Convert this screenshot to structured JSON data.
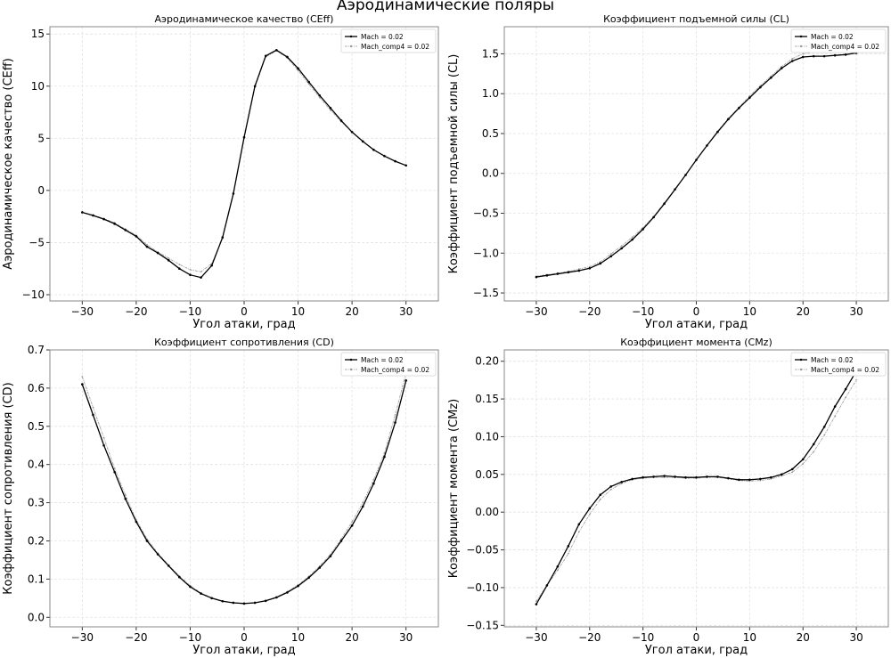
{
  "suptitle": "Аэродинамические поляры",
  "chart_data": [
    {
      "type": "line",
      "title": "Аэродинамическое качество (CEff)",
      "xlabel": "Угол атаки, град",
      "ylabel": "Аэродинамическое качество (CEff)",
      "xlim": [
        -36,
        36
      ],
      "ylim": [
        -10.6,
        15.7
      ],
      "xticks": [
        -30,
        -20,
        -10,
        0,
        10,
        20,
        30
      ],
      "yticks": [
        -10,
        -5,
        0,
        5,
        10,
        15
      ],
      "grid": true,
      "legend": "top-right",
      "x": [
        -30,
        -28,
        -26,
        -24,
        -22,
        -20,
        -18,
        -16,
        -14,
        -12,
        -10,
        -8,
        -6,
        -4,
        -2,
        0,
        2,
        4,
        6,
        8,
        10,
        12,
        14,
        16,
        18,
        20,
        22,
        24,
        26,
        28,
        30
      ],
      "series": [
        {
          "name": "Mach = 0.02",
          "color": "#000000",
          "values": [
            -2.1,
            -2.4,
            -2.75,
            -3.2,
            -3.8,
            -4.4,
            -5.4,
            -6.0,
            -6.7,
            -7.5,
            -8.1,
            -8.35,
            -7.2,
            -4.5,
            -0.3,
            5.1,
            10.0,
            12.9,
            13.45,
            12.8,
            11.7,
            10.4,
            9.1,
            7.9,
            6.7,
            5.6,
            4.7,
            3.9,
            3.3,
            2.8,
            2.4
          ]
        },
        {
          "name": "Mach_comp4 = 0.02",
          "color": "#999999",
          "values": [
            -2.1,
            -2.35,
            -2.7,
            -3.1,
            -3.7,
            -4.3,
            -5.2,
            -5.9,
            -6.5,
            -7.1,
            -7.6,
            -7.8,
            -7.0,
            -4.6,
            -0.4,
            5.0,
            9.9,
            12.8,
            13.4,
            12.7,
            11.5,
            10.2,
            8.9,
            7.7,
            6.6,
            5.6,
            4.7,
            3.9,
            3.3,
            2.8,
            2.4
          ]
        }
      ]
    },
    {
      "type": "line",
      "title": "Коэффициент подъемной силы (CL)",
      "xlabel": "Угол атаки, град",
      "ylabel": "Коэффициент подъемной силы (CL)",
      "xlim": [
        -36,
        36
      ],
      "ylim": [
        -1.6,
        1.84
      ],
      "xticks": [
        -30,
        -20,
        -10,
        0,
        10,
        20,
        30
      ],
      "yticks": [
        -1.5,
        -1.0,
        -0.5,
        0.0,
        0.5,
        1.0,
        1.5
      ],
      "grid": true,
      "legend": "top-right",
      "x": [
        -30,
        -28,
        -26,
        -24,
        -22,
        -20,
        -18,
        -16,
        -14,
        -12,
        -10,
        -8,
        -6,
        -4,
        -2,
        0,
        2,
        4,
        6,
        8,
        10,
        12,
        14,
        16,
        18,
        20,
        22,
        24,
        26,
        28,
        30
      ],
      "series": [
        {
          "name": "Mach = 0.02",
          "color": "#000000",
          "values": [
            -1.3,
            -1.28,
            -1.26,
            -1.24,
            -1.22,
            -1.19,
            -1.13,
            -1.04,
            -0.94,
            -0.83,
            -0.7,
            -0.55,
            -0.38,
            -0.2,
            -0.02,
            0.17,
            0.35,
            0.52,
            0.68,
            0.82,
            0.95,
            1.08,
            1.2,
            1.32,
            1.41,
            1.46,
            1.47,
            1.47,
            1.48,
            1.49,
            1.51
          ]
        },
        {
          "name": "Mach_comp4 = 0.02",
          "color": "#999999",
          "values": [
            -1.29,
            -1.27,
            -1.25,
            -1.23,
            -1.2,
            -1.17,
            -1.11,
            -1.01,
            -0.91,
            -0.8,
            -0.68,
            -0.54,
            -0.37,
            -0.2,
            -0.02,
            0.17,
            0.35,
            0.53,
            0.69,
            0.83,
            0.97,
            1.1,
            1.22,
            1.34,
            1.44,
            1.5,
            1.52,
            1.53,
            1.54,
            1.55,
            1.56
          ]
        }
      ]
    },
    {
      "type": "line",
      "title": "Коэффициент сопротивления (CD)",
      "xlabel": "Угол атаки, град",
      "ylabel": "Коэффициент сопротивления (CD)",
      "xlim": [
        -36,
        36
      ],
      "ylim": [
        -0.025,
        0.7
      ],
      "xticks": [
        -30,
        -20,
        -10,
        0,
        10,
        20,
        30
      ],
      "yticks": [
        0.0,
        0.1,
        0.2,
        0.3,
        0.4,
        0.5,
        0.6,
        0.7
      ],
      "grid": true,
      "legend": "top-right",
      "x": [
        -30,
        -28,
        -26,
        -24,
        -22,
        -20,
        -18,
        -16,
        -14,
        -12,
        -10,
        -8,
        -6,
        -4,
        -2,
        0,
        2,
        4,
        6,
        8,
        10,
        12,
        14,
        16,
        18,
        20,
        22,
        24,
        26,
        28,
        30
      ],
      "series": [
        {
          "name": "Mach = 0.02",
          "color": "#000000",
          "values": [
            0.61,
            0.53,
            0.45,
            0.38,
            0.31,
            0.25,
            0.2,
            0.165,
            0.135,
            0.105,
            0.08,
            0.062,
            0.05,
            0.042,
            0.038,
            0.036,
            0.038,
            0.043,
            0.052,
            0.065,
            0.082,
            0.104,
            0.13,
            0.16,
            0.2,
            0.24,
            0.29,
            0.35,
            0.42,
            0.51,
            0.62
          ]
        },
        {
          "name": "Mach_comp4 = 0.02",
          "color": "#999999",
          "values": [
            0.63,
            0.55,
            0.47,
            0.39,
            0.32,
            0.255,
            0.205,
            0.168,
            0.137,
            0.108,
            0.083,
            0.064,
            0.051,
            0.043,
            0.038,
            0.036,
            0.038,
            0.044,
            0.053,
            0.067,
            0.085,
            0.107,
            0.134,
            0.165,
            0.205,
            0.25,
            0.3,
            0.36,
            0.43,
            0.53,
            0.64
          ]
        }
      ]
    },
    {
      "type": "line",
      "title": "Коэффициент момента (CMz)",
      "xlabel": "Угол атаки, град",
      "ylabel": "Коэффициент момента (CMz)",
      "xlim": [
        -36,
        36
      ],
      "ylim": [
        -0.152,
        0.215
      ],
      "xticks": [
        -30,
        -20,
        -10,
        0,
        10,
        20,
        30
      ],
      "yticks": [
        -0.15,
        -0.1,
        -0.05,
        0.0,
        0.05,
        0.1,
        0.15,
        0.2
      ],
      "grid": true,
      "legend": "top-right",
      "x": [
        -30,
        -28,
        -26,
        -24,
        -22,
        -20,
        -18,
        -16,
        -14,
        -12,
        -10,
        -8,
        -6,
        -4,
        -2,
        0,
        2,
        4,
        6,
        8,
        10,
        12,
        14,
        16,
        18,
        20,
        22,
        24,
        26,
        28,
        30
      ],
      "series": [
        {
          "name": "Mach = 0.02",
          "color": "#000000",
          "values": [
            -0.122,
            -0.097,
            -0.072,
            -0.045,
            -0.016,
            0.005,
            0.023,
            0.034,
            0.04,
            0.044,
            0.046,
            0.047,
            0.048,
            0.047,
            0.046,
            0.046,
            0.047,
            0.047,
            0.045,
            0.043,
            0.043,
            0.044,
            0.046,
            0.05,
            0.057,
            0.07,
            0.09,
            0.113,
            0.14,
            0.163,
            0.187
          ]
        },
        {
          "name": "Mach_comp4 = 0.02",
          "color": "#999999",
          "values": [
            -0.118,
            -0.097,
            -0.077,
            -0.055,
            -0.026,
            -0.003,
            0.017,
            0.03,
            0.038,
            0.043,
            0.045,
            0.046,
            0.046,
            0.046,
            0.045,
            0.045,
            0.046,
            0.046,
            0.044,
            0.042,
            0.041,
            0.042,
            0.044,
            0.048,
            0.053,
            0.064,
            0.08,
            0.102,
            0.127,
            0.152,
            0.175
          ]
        }
      ]
    }
  ]
}
